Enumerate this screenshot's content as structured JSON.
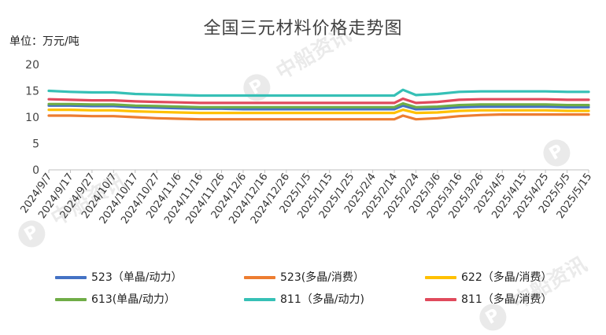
{
  "chart_data": {
    "type": "line",
    "title": "全国三元材料价格走势图",
    "unit": "单位：万元/吨",
    "ylim": [
      0,
      20
    ],
    "yticks": [
      0,
      5,
      10,
      15,
      20
    ],
    "x_tick_labels": [
      "2024/9/7",
      "2024/9/17",
      "2024/9/27",
      "2024/10/7",
      "2024/10/17",
      "2024/10/27",
      "2024/11/6",
      "2024/11/16",
      "2024/11/26",
      "2024/12/6",
      "2024/12/16",
      "2024/12/26",
      "2025/1/5",
      "2025/1/15",
      "2025/1/25",
      "2025/2/4",
      "2025/2/14",
      "2025/2/24",
      "2025/3/6",
      "2025/3/16",
      "2025/3/26",
      "2025/4/5",
      "2025/4/15",
      "2025/4/25",
      "2025/5/5",
      "2025/5/15"
    ],
    "x": [
      "2024/9/7",
      "2024/9/17",
      "2024/9/27",
      "2024/10/7",
      "2024/10/17",
      "2024/10/27",
      "2024/11/6",
      "2024/11/16",
      "2024/11/26",
      "2024/12/6",
      "2024/12/16",
      "2024/12/26",
      "2025/1/5",
      "2025/1/15",
      "2025/1/25",
      "2025/2/4",
      "2025/2/14",
      "2025/2/18",
      "2025/2/24",
      "2025/3/6",
      "2025/3/16",
      "2025/3/26",
      "2025/4/5",
      "2025/4/15",
      "2025/4/25",
      "2025/5/5",
      "2025/5/15"
    ],
    "series": [
      {
        "name": "523（单晶/动力）",
        "color": "#4472C4",
        "values": [
          12.2,
          12.2,
          12.1,
          12.1,
          11.9,
          11.8,
          11.7,
          11.6,
          11.6,
          11.5,
          11.5,
          11.5,
          11.5,
          11.5,
          11.5,
          11.5,
          11.5,
          12.2,
          11.5,
          11.6,
          11.9,
          12.0,
          12.0,
          12.0,
          12.0,
          11.9,
          11.9
        ]
      },
      {
        "name": "523(多晶/消费）",
        "color": "#ED7D31",
        "values": [
          10.3,
          10.3,
          10.2,
          10.2,
          10.0,
          9.8,
          9.7,
          9.6,
          9.6,
          9.6,
          9.6,
          9.6,
          9.6,
          9.6,
          9.6,
          9.6,
          9.6,
          10.3,
          9.6,
          9.8,
          10.2,
          10.4,
          10.5,
          10.5,
          10.5,
          10.5,
          10.5
        ]
      },
      {
        "name": "622（多晶/消费）",
        "color": "#FFC000",
        "values": [
          11.4,
          11.4,
          11.3,
          11.3,
          11.1,
          11.0,
          10.9,
          10.8,
          10.8,
          10.8,
          10.8,
          10.8,
          10.8,
          10.8,
          10.8,
          10.8,
          10.8,
          11.4,
          10.8,
          10.9,
          11.2,
          11.3,
          11.3,
          11.3,
          11.3,
          11.2,
          11.2
        ]
      },
      {
        "name": "613(单晶/动力）",
        "color": "#70AD47",
        "values": [
          12.5,
          12.5,
          12.4,
          12.4,
          12.2,
          12.1,
          12.0,
          11.9,
          11.9,
          11.9,
          11.9,
          11.9,
          11.9,
          11.9,
          11.9,
          11.9,
          11.9,
          12.6,
          11.9,
          12.0,
          12.3,
          12.4,
          12.4,
          12.4,
          12.4,
          12.3,
          12.3
        ]
      },
      {
        "name": "811（多晶/动力)",
        "color": "#36C0B6",
        "values": [
          15.0,
          14.8,
          14.7,
          14.7,
          14.4,
          14.3,
          14.2,
          14.1,
          14.1,
          14.1,
          14.1,
          14.1,
          14.1,
          14.1,
          14.1,
          14.1,
          14.1,
          15.2,
          14.2,
          14.4,
          14.8,
          14.9,
          14.9,
          14.9,
          14.9,
          14.8,
          14.8
        ]
      },
      {
        "name": "811（多晶/消费）",
        "color": "#E04A5C",
        "values": [
          13.4,
          13.3,
          13.2,
          13.2,
          13.0,
          12.9,
          12.8,
          12.7,
          12.7,
          12.7,
          12.7,
          12.7,
          12.7,
          12.7,
          12.7,
          12.7,
          12.7,
          13.5,
          12.7,
          12.9,
          13.3,
          13.4,
          13.4,
          13.4,
          13.4,
          13.3,
          13.3
        ]
      }
    ],
    "grid": false,
    "legend_position": "bottom"
  },
  "watermark": "中船资讯"
}
